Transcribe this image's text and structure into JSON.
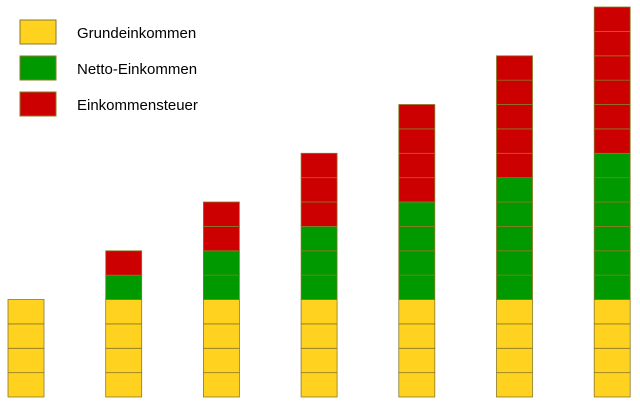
{
  "colors": {
    "grundeinkommen": "#FFD21F",
    "netto": "#009900",
    "steuer": "#CC0000",
    "cell_border": "#8a7a2a"
  },
  "legend": [
    {
      "key": "grundeinkommen",
      "label": "Grundeinkommen"
    },
    {
      "key": "netto",
      "label": "Netto-Einkommen"
    },
    {
      "key": "steuer",
      "label": "Einkommensteuer"
    }
  ],
  "chart_data": {
    "type": "bar",
    "stacked": true,
    "unit_blocks": true,
    "categories": [
      "",
      "",
      "",
      "",
      "",
      "",
      ""
    ],
    "series": [
      {
        "name": "Grundeinkommen",
        "color_key": "grundeinkommen",
        "values": [
          4,
          4,
          4,
          4,
          4,
          4,
          4
        ]
      },
      {
        "name": "Netto-Einkommen",
        "color_key": "netto",
        "values": [
          0,
          1,
          2,
          3,
          4,
          5,
          6
        ]
      },
      {
        "name": "Einkommensteuer",
        "color_key": "steuer",
        "values": [
          0,
          1,
          2,
          3,
          4,
          5,
          6
        ]
      }
    ],
    "ylim": [
      0,
      16
    ],
    "grid": false,
    "legend_position": "top-left"
  }
}
